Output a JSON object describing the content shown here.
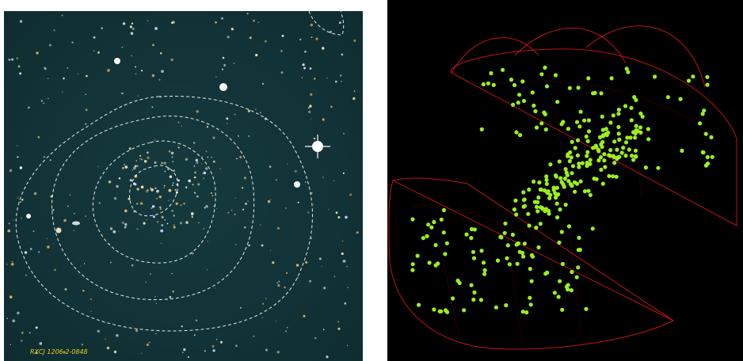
{
  "image": {
    "label": "RXCJ 1206.2-0848"
  }
}
